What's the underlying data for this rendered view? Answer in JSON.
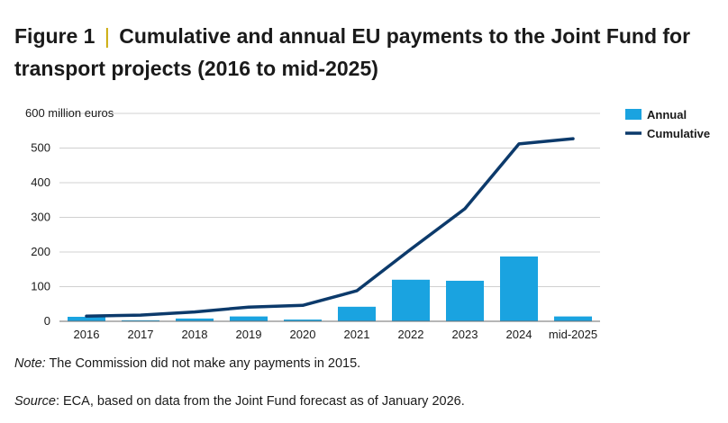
{
  "figure": {
    "label": "Figure 1",
    "separator": "|",
    "title": "Cumulative and annual EU payments to the Joint Fund for transport projects (2016 to mid-2025)"
  },
  "note": {
    "label": "Note:",
    "text": " The Commission did not make any payments in 2015."
  },
  "source": {
    "label": "Source",
    "text": ": ECA, based on data from the Joint Fund forecast as of January 2026."
  },
  "colors": {
    "annual": "#1aa3e0",
    "cumulative": "#0c3a6b",
    "grid": "#d0d0d0"
  },
  "chart_data": {
    "type": "bar",
    "categories": [
      "2016",
      "2017",
      "2018",
      "2019",
      "2020",
      "2021",
      "2022",
      "2023",
      "2024",
      "mid-2025"
    ],
    "ylabel": "600 million euros",
    "ylim": [
      0,
      600
    ],
    "yticks": [
      "0",
      "100",
      "200",
      "300",
      "400",
      "500"
    ],
    "grid": true,
    "legend_position": "right",
    "series": [
      {
        "name": "Annual",
        "type": "bar",
        "values": [
          13,
          3,
          8,
          14,
          5,
          42,
          120,
          117,
          187,
          14
        ]
      },
      {
        "name": "Cumulative",
        "type": "line",
        "values": [
          15,
          18,
          27,
          41,
          46,
          88,
          208,
          325,
          512,
          527
        ]
      }
    ]
  }
}
